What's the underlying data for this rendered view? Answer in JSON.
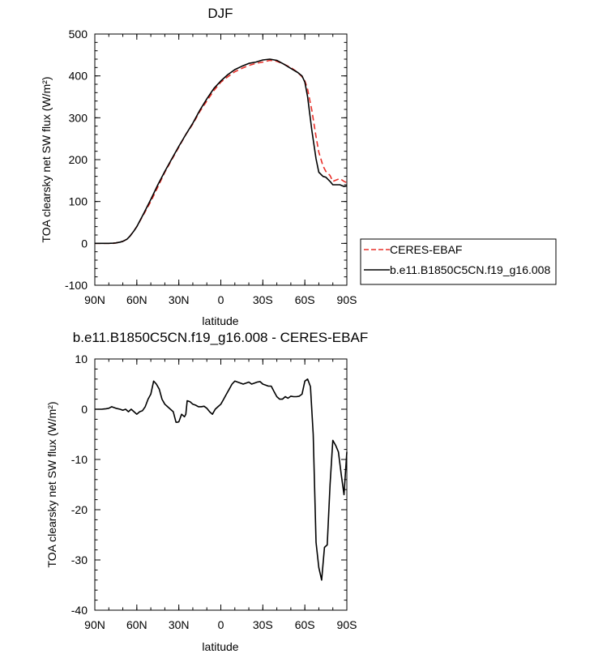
{
  "colors": {
    "ceres": "#e8302a",
    "model": "#000000",
    "axis": "#000000"
  },
  "chart_data": [
    {
      "type": "line",
      "title": "DJF",
      "xlabel": "latitude",
      "ylabel": "TOA clearsky net SW flux (W/m²)",
      "xlim": [
        90,
        -90
      ],
      "ylim": [
        -100,
        500
      ],
      "x_ticks": [
        90,
        60,
        30,
        0,
        -30,
        -60,
        -90
      ],
      "x_tick_labels": [
        "90N",
        "60N",
        "30N",
        "0",
        "30S",
        "60S",
        "90S"
      ],
      "y_ticks": [
        -100,
        0,
        100,
        200,
        300,
        400,
        500
      ],
      "legend": "right",
      "series": [
        {
          "name": "CERES-EBAF",
          "style": "dashed",
          "color": "#e8302a",
          "x": [
            90,
            85,
            80,
            77,
            75,
            72,
            70,
            67,
            65,
            62,
            60,
            55,
            50,
            45,
            40,
            35,
            30,
            25,
            20,
            15,
            10,
            5,
            0,
            -5,
            -10,
            -15,
            -20,
            -25,
            -30,
            -35,
            -40,
            -45,
            -50,
            -55,
            -58,
            -60,
            -62,
            -65,
            -68,
            -70,
            -73,
            -75,
            -78,
            -80,
            -85,
            -88,
            -90
          ],
          "y": [
            0,
            0,
            0,
            0,
            1,
            3,
            5,
            10,
            17,
            30,
            40,
            70,
            100,
            135,
            170,
            200,
            230,
            260,
            285,
            315,
            340,
            365,
            385,
            398,
            410,
            418,
            425,
            430,
            433,
            437,
            435,
            428,
            420,
            408,
            398,
            388,
            368,
            318,
            255,
            218,
            185,
            172,
            162,
            148,
            155,
            148,
            145
          ]
        },
        {
          "name": "b.e11.B1850C5CN.f19_g16.008",
          "style": "solid",
          "color": "#000000",
          "x": [
            90,
            85,
            80,
            77,
            75,
            72,
            70,
            67,
            65,
            62,
            60,
            55,
            50,
            45,
            40,
            35,
            30,
            25,
            20,
            15,
            10,
            5,
            0,
            -5,
            -10,
            -15,
            -20,
            -25,
            -30,
            -35,
            -40,
            -45,
            -50,
            -55,
            -58,
            -60,
            -62,
            -65,
            -68,
            -70,
            -73,
            -75,
            -78,
            -80,
            -85,
            -88,
            -90
          ],
          "y": [
            0,
            0,
            0,
            0.5,
            1,
            3,
            5,
            10,
            17,
            30,
            40,
            72,
            105,
            140,
            172,
            202,
            232,
            260,
            287,
            318,
            345,
            370,
            388,
            403,
            415,
            423,
            430,
            433,
            438,
            440,
            437,
            428,
            418,
            408,
            400,
            385,
            350,
            270,
            202,
            170,
            160,
            158,
            148,
            140,
            140,
            136,
            137
          ]
        }
      ]
    },
    {
      "type": "line",
      "title": "b.e11.B1850C5CN.f19_g16.008 - CERES-EBAF",
      "xlabel": "latitude",
      "ylabel": "TOA clearsky net SW flux (W/m²)",
      "xlim": [
        90,
        -90
      ],
      "ylim": [
        -40,
        10
      ],
      "x_ticks": [
        90,
        60,
        30,
        0,
        -30,
        -60,
        -90
      ],
      "x_tick_labels": [
        "90N",
        "60N",
        "30N",
        "0",
        "30S",
        "60S",
        "90S"
      ],
      "y_ticks": [
        -40,
        -30,
        -20,
        -10,
        0,
        10
      ],
      "series": [
        {
          "style": "solid",
          "color": "#000000",
          "x": [
            90,
            85,
            82,
            80,
            78,
            75,
            72,
            70,
            68,
            66,
            64,
            62,
            60,
            58,
            56,
            54,
            52,
            50,
            48,
            46,
            44,
            42,
            40,
            38,
            36,
            34,
            32,
            31,
            30,
            28,
            26,
            25,
            24,
            22,
            20,
            18,
            16,
            14,
            12,
            10,
            8,
            6,
            4,
            2,
            0,
            -2,
            -4,
            -6,
            -8,
            -10,
            -12,
            -14,
            -16,
            -18,
            -20,
            -22,
            -24,
            -26,
            -28,
            -30,
            -32,
            -34,
            -36,
            -38,
            -40,
            -42,
            -44,
            -46,
            -48,
            -50,
            -52,
            -54,
            -56,
            -58,
            -60,
            -62,
            -64,
            -66,
            -68,
            -70,
            -72,
            -74,
            -76,
            -78,
            -80,
            -82,
            -84,
            -86,
            -88,
            -90
          ],
          "y": [
            0,
            0,
            0.1,
            0.2,
            0.5,
            0.2,
            0,
            -0.2,
            0,
            -0.5,
            0,
            -0.5,
            -1,
            -0.5,
            -0.3,
            0.5,
            2,
            3,
            5.6,
            5,
            4,
            2,
            1,
            0.5,
            0,
            -0.5,
            -2.6,
            -2.6,
            -2.5,
            -1,
            -1.5,
            -1,
            1.7,
            1.5,
            1,
            0.8,
            0.5,
            0.5,
            0.6,
            0.2,
            -0.5,
            -1,
            0,
            0.5,
            1,
            2,
            3,
            4,
            5,
            5.6,
            5.4,
            5.2,
            5,
            5.2,
            5.4,
            5,
            5.2,
            5.4,
            5.5,
            5,
            4.8,
            4.6,
            4.6,
            3.5,
            2.5,
            2,
            2,
            2.5,
            2.2,
            2.6,
            2.5,
            2.5,
            2.6,
            3,
            5.6,
            6,
            4.5,
            -5,
            -26.5,
            -31.5,
            -34,
            -27.5,
            -27,
            -15,
            -6.2,
            -7.2,
            -8.5,
            -13,
            -17,
            -8.5
          ]
        }
      ]
    }
  ]
}
